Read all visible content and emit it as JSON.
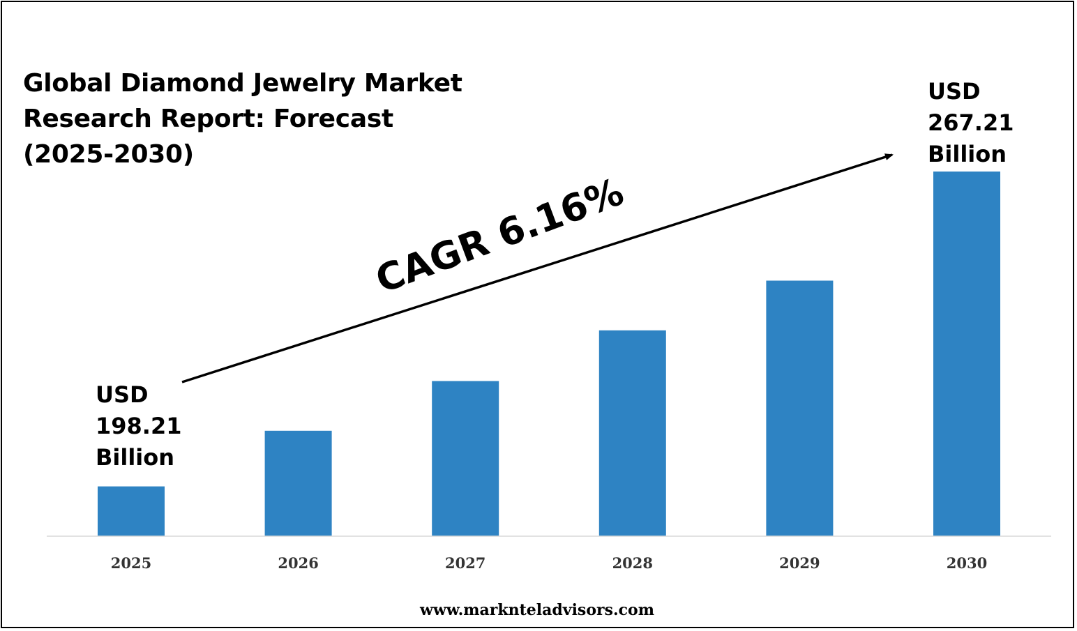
{
  "title_lines": [
    "Global Diamond Jewelry Market",
    "Research Report: Forecast",
    "(2025-2030)"
  ],
  "annotations": {
    "start_label": [
      "USD",
      "198.21",
      "Billion"
    ],
    "end_label": [
      "USD",
      "267.21",
      "Billion"
    ],
    "cagr": "CAGR 6.16%"
  },
  "footer": "www.marknteladvisors.com",
  "colors": {
    "bar": "#2E83C3",
    "axis": "#D9D9D9",
    "text": "#000000"
  },
  "chart_data": {
    "type": "bar",
    "title": "Global Diamond Jewelry Market Research Report: Forecast (2025-2030)",
    "categories": [
      "2025",
      "2026",
      "2027",
      "2028",
      "2029",
      "2030"
    ],
    "values": [
      198.21,
      210.4,
      221.3,
      232.4,
      243.3,
      267.21
    ],
    "unit": "USD Billion",
    "xlabel": "",
    "ylabel": "",
    "ylim": [
      187.3,
      267.21
    ],
    "grid": false,
    "legend": "none"
  }
}
